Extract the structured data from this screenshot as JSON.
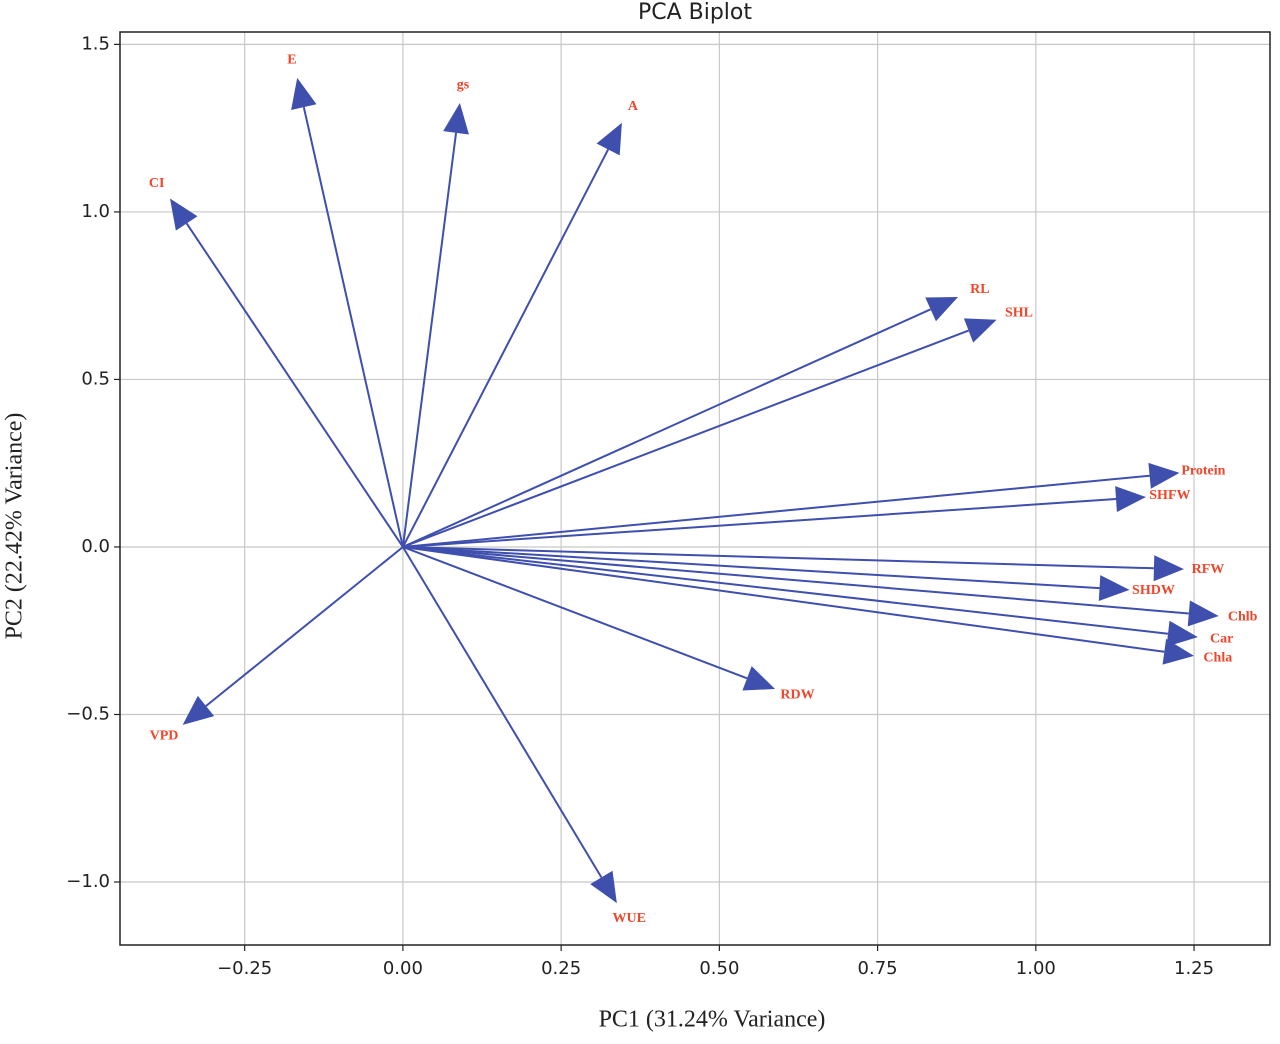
{
  "chart_data": {
    "type": "biplot",
    "title": "PCA Biplot",
    "xlabel": "PC1 (31.24% Variance)",
    "ylabel": "PC2 (22.42% Variance)",
    "labels": [
      "E",
      "gs",
      "A",
      "CI",
      "RL",
      "SHL",
      "Protein",
      "SHFW",
      "RFW",
      "SHDW",
      "Chlb",
      "Car",
      "Chla",
      "RDW",
      "WUE",
      "VPD"
    ],
    "x": [
      -0.167,
      0.09,
      0.346,
      -0.368,
      0.877,
      0.938,
      1.227,
      1.174,
      1.234,
      1.148,
      1.289,
      1.256,
      1.25,
      0.588,
      0.338,
      -0.348
    ],
    "y": [
      1.4,
      1.325,
      1.266,
      1.04,
      0.746,
      0.678,
      0.221,
      0.149,
      -0.066,
      -0.128,
      -0.206,
      -0.269,
      -0.325,
      -0.424,
      -1.063,
      -0.531
    ],
    "arrow_color": "#3f4fae",
    "label_color": "#f0452a",
    "xlim": [
      -0.447,
      1.37
    ],
    "ylim": [
      -1.188,
      1.537
    ],
    "xticks": [
      {
        "value": -0.25,
        "label": "−0.25"
      },
      {
        "value": 0,
        "label": "0.00"
      },
      {
        "value": 0.25,
        "label": "0.25"
      },
      {
        "value": 0.5,
        "label": "0.50"
      },
      {
        "value": 0.75,
        "label": "0.75"
      },
      {
        "value": 1,
        "label": "1.00"
      },
      {
        "value": 1.25,
        "label": "1.25"
      }
    ],
    "yticks": [
      {
        "value": -1,
        "label": "−1.0"
      },
      {
        "value": -0.5,
        "label": "−0.5"
      },
      {
        "value": 0,
        "label": "0.0"
      },
      {
        "value": 0.5,
        "label": "0.5"
      },
      {
        "value": 1,
        "label": "1.0"
      },
      {
        "value": 1.5,
        "label": "1.5"
      }
    ],
    "grid": true
  }
}
